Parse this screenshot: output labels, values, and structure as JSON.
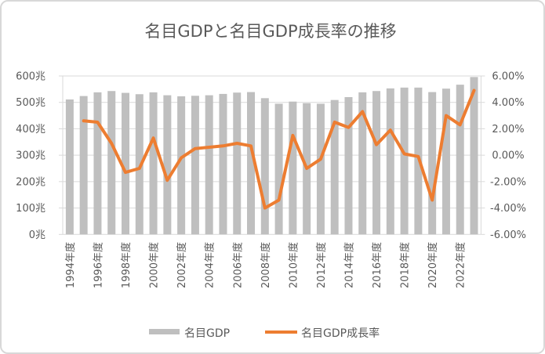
{
  "window": {
    "background": "#FFFFFF",
    "border_color": "#D8D8D8"
  },
  "chart_data": {
    "type": "combo",
    "subtypes": [
      "bar",
      "line"
    ],
    "title": "名目GDPと名目GDP成長率の推移",
    "years": [
      1994,
      1995,
      1996,
      1997,
      1998,
      1999,
      2000,
      2001,
      2002,
      2003,
      2004,
      2005,
      2006,
      2007,
      2008,
      2009,
      2010,
      2011,
      2012,
      2013,
      2014,
      2015,
      2016,
      2017,
      2018,
      2019,
      2020,
      2021,
      2022,
      2023
    ],
    "x_tick_labels": [
      "1994年度",
      "1996年度",
      "1998年度",
      "2000年度",
      "2002年度",
      "2004年度",
      "2006年度",
      "2008年度",
      "2010年度",
      "2012年度",
      "2014年度",
      "2016年度",
      "2018年度",
      "2020年度",
      "2022年度"
    ],
    "series": [
      {
        "name": "名目GDP",
        "type": "bar",
        "axis": "left",
        "unit": "兆円",
        "color": "#BFBFBF",
        "values": [
          511,
          524,
          538,
          543,
          536,
          531,
          538,
          527,
          523,
          525,
          527,
          532,
          537,
          539,
          516,
          495,
          503,
          497,
          495,
          509,
          520,
          538,
          543,
          553,
          556,
          556,
          539,
          552,
          567,
          596
        ]
      },
      {
        "name": "名目GDP成長率",
        "type": "line",
        "axis": "right",
        "unit": "%",
        "color": "#ED7D31",
        "start_year": 1995,
        "values": [
          2.6,
          2.5,
          0.9,
          -1.3,
          -1.0,
          1.3,
          -1.9,
          -0.2,
          0.5,
          0.6,
          0.7,
          0.9,
          0.7,
          -4.0,
          -3.4,
          1.5,
          -1.0,
          -0.3,
          2.5,
          2.1,
          3.3,
          0.8,
          1.9,
          0.1,
          -0.1,
          -3.4,
          3.0,
          2.3,
          4.9
        ]
      }
    ],
    "left_axis": {
      "min": 0,
      "max": 600,
      "tick_step": 100,
      "tick_labels": [
        "0兆",
        "100兆",
        "200兆",
        "300兆",
        "400兆",
        "500兆",
        "600兆"
      ]
    },
    "right_axis": {
      "min": -6,
      "max": 6,
      "tick_step": 2,
      "tick_labels": [
        "-6.00%",
        "-4.00%",
        "-2.00%",
        "0.00%",
        "2.00%",
        "4.00%",
        "6.00%"
      ]
    },
    "grid": {
      "show": true,
      "color": "#D9D9D9",
      "text_color": "#595959"
    },
    "legend": {
      "position": "bottom"
    }
  }
}
